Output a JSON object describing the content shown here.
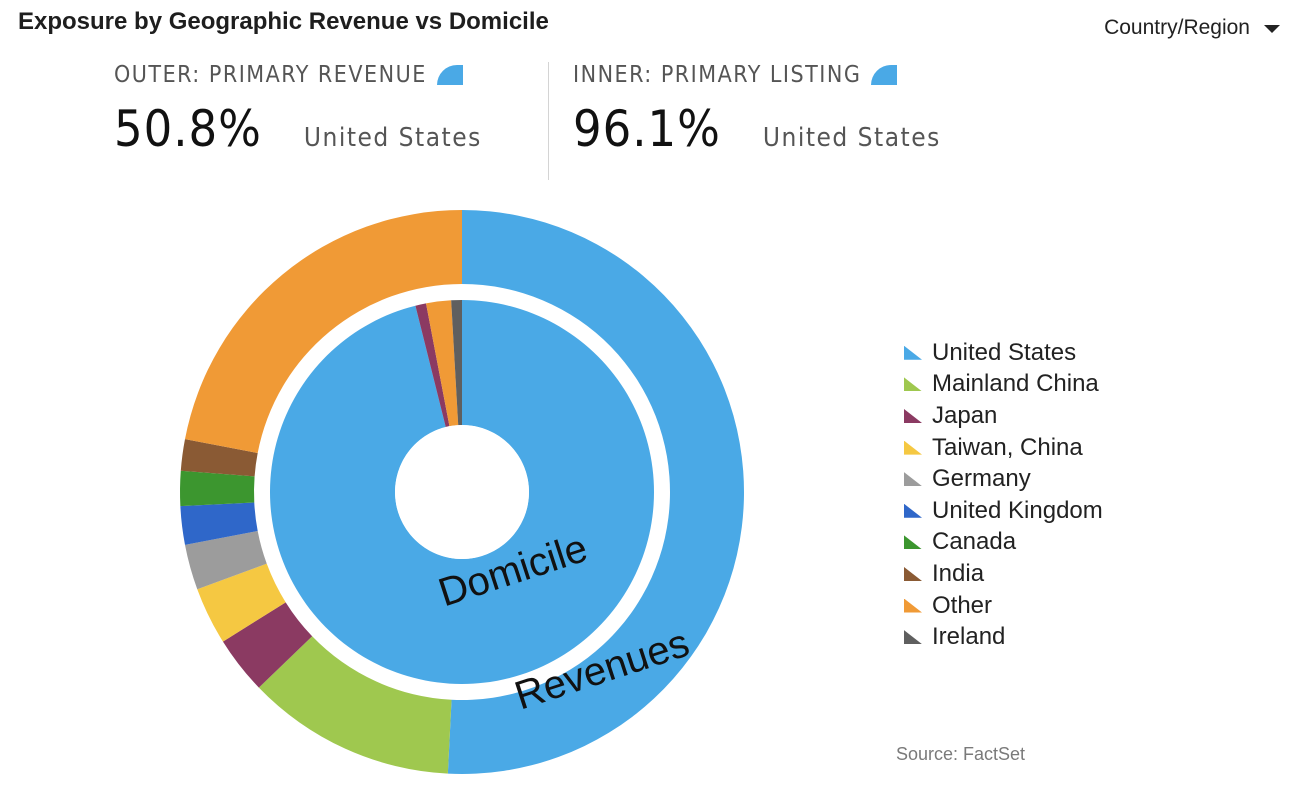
{
  "header": {
    "title": "Exposure by Geographic Revenue vs Domicile",
    "selector_label": "Country/Region"
  },
  "outer_stat": {
    "label": "OUTER: PRIMARY REVENUE",
    "value": "50.8%",
    "country": "United States"
  },
  "inner_stat": {
    "label": "INNER: PRIMARY LISTING",
    "value": "96.1%",
    "country": "United States"
  },
  "source": "Source: FactSet",
  "colors": {
    "United States": "#4aa9e6",
    "Mainland China": "#9fc84f",
    "Japan": "#8b3a62",
    "Taiwan, China": "#f5c842",
    "Germany": "#9c9c9c",
    "United Kingdom": "#2f67c9",
    "Canada": "#3c962f",
    "India": "#8a5a34",
    "Other": "#f09a36",
    "Ireland": "#5f5f5f"
  },
  "chart_data": {
    "type": "pie",
    "title": "Exposure by Geographic Revenue vs Domicile",
    "legend": [
      "United States",
      "Mainland China",
      "Japan",
      "Taiwan, China",
      "Germany",
      "United Kingdom",
      "Canada",
      "India",
      "Other",
      "Ireland"
    ],
    "legend_position": "right",
    "annotations": {
      "inner": "Domicile",
      "outer": "Revenues"
    },
    "series": [
      {
        "name": "OUTER: PRIMARY REVENUE",
        "slices": [
          {
            "label": "United States",
            "value": 50.8
          },
          {
            "label": "Mainland China",
            "value": 12.0
          },
          {
            "label": "Japan",
            "value": 3.3
          },
          {
            "label": "Taiwan, China",
            "value": 3.3
          },
          {
            "label": "Germany",
            "value": 2.6
          },
          {
            "label": "United Kingdom",
            "value": 2.2
          },
          {
            "label": "Canada",
            "value": 2.0
          },
          {
            "label": "India",
            "value": 1.8
          },
          {
            "label": "Other",
            "value": 22.0
          }
        ]
      },
      {
        "name": "INNER: PRIMARY LISTING",
        "slices": [
          {
            "label": "United States",
            "value": 96.1
          },
          {
            "label": "Japan",
            "value": 0.9
          },
          {
            "label": "Other",
            "value": 2.1
          },
          {
            "label": "Ireland",
            "value": 0.9
          }
        ]
      }
    ]
  }
}
